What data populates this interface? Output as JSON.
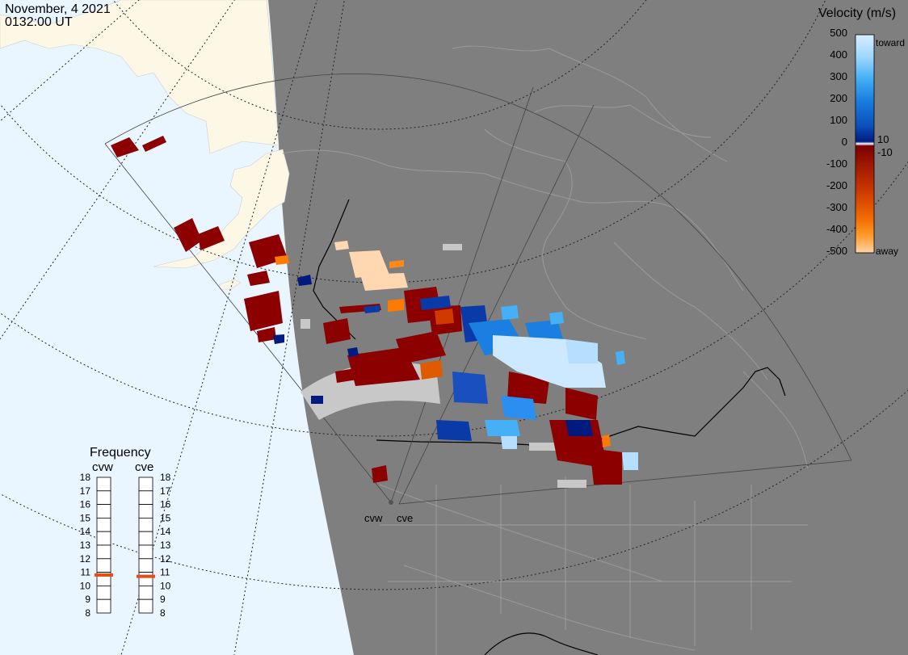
{
  "header": {
    "date": "November, 4 2021",
    "time": "0132:00 UT"
  },
  "legend": {
    "title": "Velocity (m/s)",
    "ticks": [
      "500",
      "400",
      "300",
      "200",
      "100",
      "10",
      "0",
      "-10",
      "-100",
      "-200",
      "-300",
      "-400",
      "-500"
    ],
    "toward_label": "toward",
    "away_label": "away",
    "gradient_colors": [
      "#d6eeff",
      "#9fd8ff",
      "#45b0f5",
      "#1a7fe0",
      "#0a4fb8",
      "#001a80",
      "#7a0000",
      "#a01800",
      "#cc3a00",
      "#f06a00",
      "#ff9a2a",
      "#ffd3a8"
    ]
  },
  "frequency": {
    "title": "Frequency",
    "radars": [
      {
        "label": "cvw",
        "value": 10.8
      },
      {
        "label": "cve",
        "value": 10.7
      }
    ],
    "scale": [
      "18",
      "17",
      "16",
      "15",
      "14",
      "13",
      "12",
      "11",
      "10",
      "9",
      "8"
    ],
    "marker_color": "#e84b1a"
  },
  "map": {
    "ocean_color": "#e9f6ff",
    "land_day_color": "#fdf8e6",
    "night_color": "#7f7f7f",
    "ground_scatter_color": "#c8c8c8",
    "radar_labels": [
      "cvw",
      "cve"
    ]
  }
}
